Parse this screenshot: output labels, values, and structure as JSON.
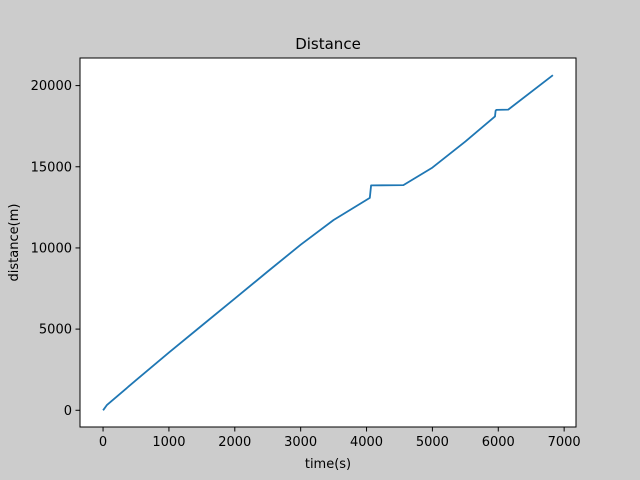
{
  "chart_data": {
    "type": "line",
    "title": "Distance",
    "xlabel": "time(s)",
    "ylabel": "distance(m)",
    "xlim": [
      -350,
      7180
    ],
    "ylim": [
      -1030,
      21700
    ],
    "xticks": [
      0,
      1000,
      2000,
      3000,
      4000,
      5000,
      6000,
      7000
    ],
    "yticks": [
      0,
      5000,
      10000,
      15000,
      20000
    ],
    "xtick_labels": [
      "0",
      "1000",
      "2000",
      "3000",
      "4000",
      "5000",
      "6000",
      "7000"
    ],
    "ytick_labels": [
      "0",
      "5000",
      "10000",
      "15000",
      "20000"
    ],
    "grid": false,
    "colors": {
      "line": "#1f77b4",
      "background": "#cccccc",
      "axes": "#ffffff"
    },
    "series": [
      {
        "x": [
          0,
          60,
          500,
          1000,
          1500,
          2000,
          2500,
          3000,
          3500,
          4050,
          4060,
          4070,
          4560,
          5000,
          5500,
          5950,
          5960,
          5970,
          6150,
          6830
        ],
        "y": [
          0,
          330,
          1850,
          3550,
          5220,
          6880,
          8550,
          10200,
          11720,
          13080,
          13500,
          13850,
          13870,
          14950,
          16550,
          18100,
          18450,
          18500,
          18520,
          20640
        ]
      }
    ]
  }
}
